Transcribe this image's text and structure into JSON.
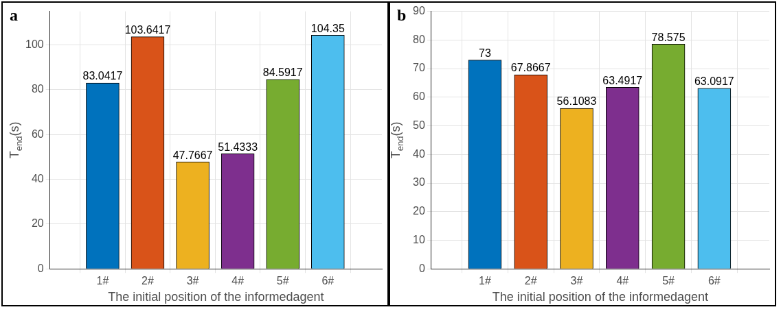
{
  "chart_data": [
    {
      "type": "bar",
      "title": "a",
      "xlabel": "The initial position of the informedagent",
      "ylabel": "T$_{end}$(s)",
      "categories": [
        "1#",
        "2#",
        "3#",
        "4#",
        "5#",
        "6#"
      ],
      "values": [
        83.0417,
        103.6417,
        47.7667,
        51.4333,
        84.5917,
        104.35
      ],
      "colors": [
        "#0072bd",
        "#d95319",
        "#edb120",
        "#7e2f8e",
        "#77ac30",
        "#4dbeee"
      ],
      "ylim": [
        0,
        115
      ],
      "yticks": [
        0,
        20,
        40,
        60,
        80,
        100
      ],
      "grid": true,
      "data_labels": true,
      "legend": false
    },
    {
      "type": "bar",
      "title": "b",
      "xlabel": "The initial position of the informedagent",
      "ylabel": "T$_{end}$(s)",
      "categories": [
        "1#",
        "2#",
        "3#",
        "4#",
        "5#",
        "6#"
      ],
      "values": [
        73,
        67.8667,
        56.1083,
        63.4917,
        78.575,
        63.0917
      ],
      "colors": [
        "#0072bd",
        "#d95319",
        "#edb120",
        "#7e2f8e",
        "#77ac30",
        "#4dbeee"
      ],
      "ylim": [
        0,
        90
      ],
      "yticks": [
        0,
        10,
        20,
        30,
        40,
        50,
        60,
        70,
        80,
        90
      ],
      "grid": true,
      "data_labels": true,
      "legend": false
    }
  ]
}
